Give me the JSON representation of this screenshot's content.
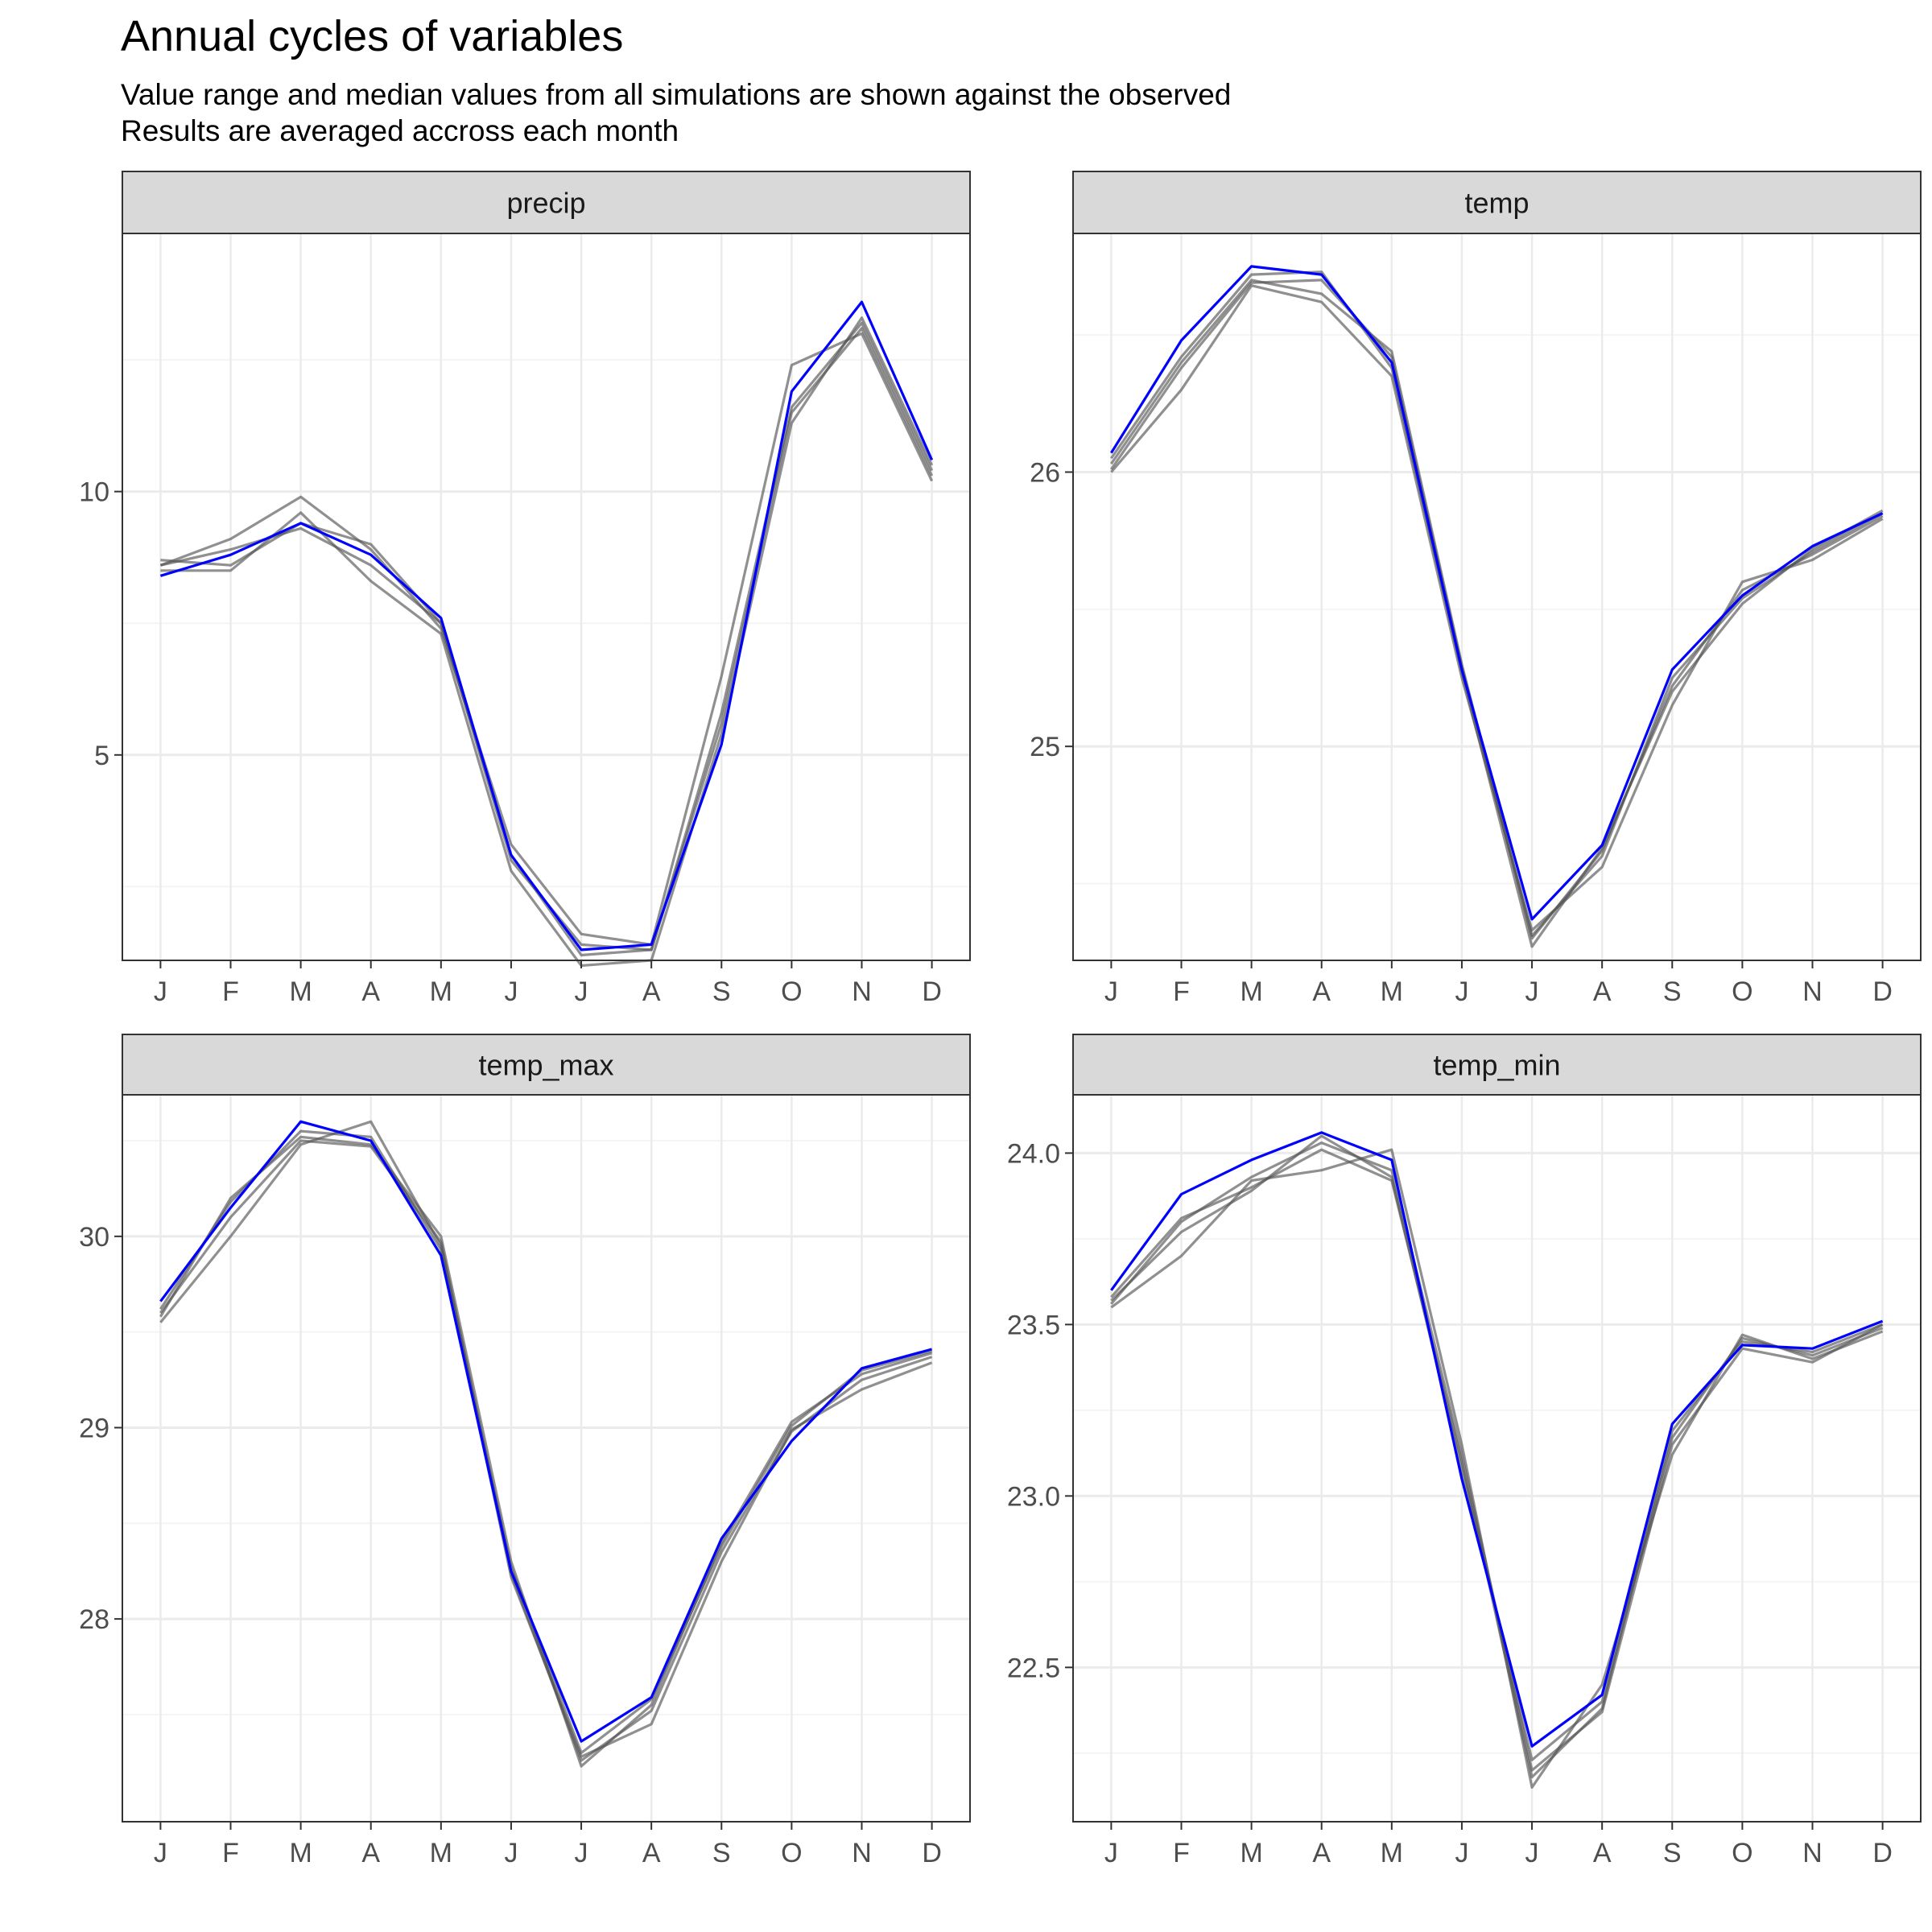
{
  "title": "Annual cycles of variables",
  "subtitle_lines": [
    "Value range and median values from all simulations are shown against the observed",
    "Results are averaged accross each month"
  ],
  "colors": {
    "observed": "#0000ff",
    "simulations": "#555555",
    "strip_fill": "#d9d9d9",
    "strip_border": "#333333",
    "grid_major": "#ebebeb",
    "grid_minor": "#f4f4f4",
    "axis_text": "#4d4d4d"
  },
  "chart_data": [
    {
      "type": "line",
      "panel": "precip",
      "categories": [
        "J",
        "F",
        "M",
        "A",
        "M",
        "J",
        "J",
        "A",
        "S",
        "O",
        "N",
        "D"
      ],
      "ylim": [
        1.1,
        14.9
      ],
      "yticks": [
        5,
        10
      ],
      "yticklabels": [
        "5",
        "10"
      ],
      "series": [
        {
          "observed": true,
          "values": [
            8.4,
            8.8,
            9.4,
            8.8,
            7.6,
            3.1,
            1.3,
            1.4,
            5.2,
            11.9,
            13.6,
            10.6
          ]
        },
        {
          "observed": false,
          "values": [
            8.7,
            8.6,
            9.4,
            9.0,
            7.5,
            3.1,
            1.2,
            1.3,
            5.8,
            11.6,
            13.2,
            10.4
          ]
        },
        {
          "observed": false,
          "values": [
            8.6,
            9.1,
            9.9,
            8.9,
            7.4,
            3.3,
            1.6,
            1.4,
            6.5,
            12.4,
            13.0,
            10.2
          ]
        },
        {
          "observed": false,
          "values": [
            8.5,
            8.5,
            9.6,
            8.3,
            7.3,
            2.8,
            1.0,
            1.1,
            5.4,
            11.3,
            13.3,
            10.5
          ]
        },
        {
          "observed": false,
          "values": [
            8.6,
            8.9,
            9.3,
            8.6,
            7.5,
            3.0,
            1.4,
            1.3,
            5.6,
            11.5,
            13.1,
            10.3
          ]
        }
      ]
    },
    {
      "type": "line",
      "panel": "temp",
      "categories": [
        "J",
        "F",
        "M",
        "A",
        "M",
        "J",
        "J",
        "A",
        "S",
        "O",
        "N",
        "D"
      ],
      "ylim": [
        24.22,
        26.87
      ],
      "yticks": [
        25,
        26
      ],
      "yticklabels": [
        "25",
        "26"
      ],
      "series": [
        {
          "observed": true,
          "values": [
            26.07,
            26.48,
            26.75,
            26.72,
            26.4,
            25.28,
            24.37,
            24.64,
            25.28,
            25.55,
            25.73,
            25.85
          ]
        },
        {
          "observed": false,
          "values": [
            26.03,
            26.4,
            26.7,
            26.65,
            26.44,
            25.3,
            24.3,
            24.62,
            25.22,
            25.57,
            25.7,
            25.84
          ]
        },
        {
          "observed": false,
          "values": [
            26.0,
            26.3,
            26.68,
            26.62,
            26.35,
            25.25,
            24.33,
            24.56,
            25.15,
            25.6,
            25.68,
            25.83
          ]
        },
        {
          "observed": false,
          "values": [
            26.05,
            26.42,
            26.72,
            26.73,
            26.38,
            25.27,
            24.27,
            24.63,
            25.2,
            25.52,
            25.72,
            25.86
          ]
        },
        {
          "observed": false,
          "values": [
            26.01,
            26.38,
            26.69,
            26.7,
            26.42,
            25.29,
            24.31,
            24.6,
            25.25,
            25.54,
            25.71,
            25.85
          ]
        }
      ]
    },
    {
      "type": "line",
      "panel": "temp_max",
      "categories": [
        "J",
        "F",
        "M",
        "A",
        "M",
        "J",
        "J",
        "A",
        "S",
        "O",
        "N",
        "D"
      ],
      "ylim": [
        26.94,
        30.74
      ],
      "yticks": [
        28,
        29,
        30
      ],
      "yticklabels": [
        "28",
        "29",
        "30"
      ],
      "series": [
        {
          "observed": true,
          "values": [
            29.66,
            30.15,
            30.6,
            30.5,
            29.9,
            28.25,
            27.36,
            27.59,
            28.42,
            28.93,
            29.31,
            29.41
          ]
        },
        {
          "observed": false,
          "values": [
            29.58,
            30.2,
            30.52,
            30.48,
            30.0,
            28.3,
            27.23,
            27.55,
            28.4,
            29.03,
            29.28,
            29.39
          ]
        },
        {
          "observed": false,
          "values": [
            29.55,
            30.0,
            30.48,
            30.6,
            29.95,
            28.22,
            27.28,
            27.45,
            28.3,
            28.99,
            29.2,
            29.34
          ]
        },
        {
          "observed": false,
          "values": [
            29.62,
            30.18,
            30.55,
            30.52,
            29.93,
            28.27,
            27.3,
            27.58,
            28.38,
            29.01,
            29.3,
            29.4
          ]
        },
        {
          "observed": false,
          "values": [
            29.6,
            30.1,
            30.5,
            30.47,
            29.97,
            28.24,
            27.26,
            27.52,
            28.35,
            28.98,
            29.25,
            29.37
          ]
        }
      ]
    },
    {
      "type": "line",
      "panel": "temp_min",
      "categories": [
        "J",
        "F",
        "M",
        "A",
        "M",
        "J",
        "J",
        "A",
        "S",
        "O",
        "N",
        "D"
      ],
      "ylim": [
        22.05,
        24.17
      ],
      "yticks": [
        22.5,
        23.0,
        23.5,
        24.0
      ],
      "yticklabels": [
        "22.5",
        "23.0",
        "23.5",
        "24.0"
      ],
      "series": [
        {
          "observed": true,
          "values": [
            23.6,
            23.88,
            23.98,
            24.06,
            23.98,
            23.05,
            22.27,
            22.42,
            23.21,
            23.44,
            23.43,
            23.51
          ]
        },
        {
          "observed": false,
          "values": [
            23.58,
            23.81,
            23.9,
            24.01,
            23.92,
            23.1,
            22.18,
            22.38,
            23.19,
            23.45,
            23.42,
            23.5
          ]
        },
        {
          "observed": false,
          "values": [
            23.55,
            23.7,
            23.92,
            23.95,
            24.01,
            23.15,
            22.15,
            22.45,
            23.12,
            23.47,
            23.4,
            23.48
          ]
        },
        {
          "observed": false,
          "values": [
            23.57,
            23.77,
            23.89,
            24.05,
            23.93,
            23.08,
            22.23,
            22.4,
            23.17,
            23.46,
            23.41,
            23.49
          ]
        },
        {
          "observed": false,
          "values": [
            23.56,
            23.8,
            23.93,
            24.03,
            23.95,
            23.12,
            22.2,
            22.37,
            23.15,
            23.43,
            23.39,
            23.5
          ]
        }
      ]
    }
  ]
}
